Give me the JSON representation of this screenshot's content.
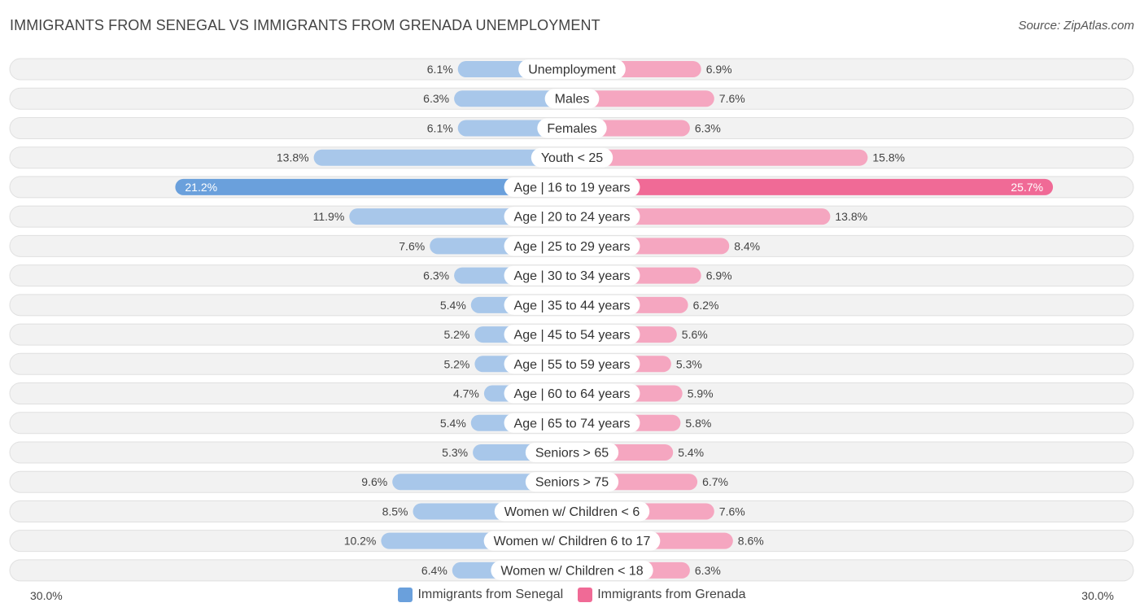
{
  "title": "IMMIGRANTS FROM SENEGAL VS IMMIGRANTS FROM GRENADA UNEMPLOYMENT",
  "source": "Source: ZipAtlas.com",
  "axis": {
    "left_label": "30.0%",
    "right_label": "30.0%"
  },
  "legend": [
    {
      "label": "Immigrants from Senegal",
      "color": "#6aa0dc"
    },
    {
      "label": "Immigrants from Grenada",
      "color": "#f06a96"
    }
  ],
  "colors": {
    "left_bar": "#a8c7ea",
    "left_bar_highlight": "#6aa0dc",
    "right_bar": "#f5a6c0",
    "right_bar_highlight": "#f06a96",
    "row_bg": "#f2f2f2",
    "row_border": "#e0e0e0"
  },
  "chart_data": {
    "type": "bar",
    "orientation": "horizontal-diverging",
    "title": "IMMIGRANTS FROM SENEGAL VS IMMIGRANTS FROM GRENADA UNEMPLOYMENT",
    "xlim": [
      0,
      30
    ],
    "categories": [
      "Unemployment",
      "Males",
      "Females",
      "Youth < 25",
      "Age | 16 to 19 years",
      "Age | 20 to 24 years",
      "Age | 25 to 29 years",
      "Age | 30 to 34 years",
      "Age | 35 to 44 years",
      "Age | 45 to 54 years",
      "Age | 55 to 59 years",
      "Age | 60 to 64 years",
      "Age | 65 to 74 years",
      "Seniors > 65",
      "Seniors > 75",
      "Women w/ Children < 6",
      "Women w/ Children 6 to 17",
      "Women w/ Children < 18"
    ],
    "series": [
      {
        "name": "Immigrants from Senegal",
        "values": [
          6.1,
          6.3,
          6.1,
          13.8,
          21.2,
          11.9,
          7.6,
          6.3,
          5.4,
          5.2,
          5.2,
          4.7,
          5.4,
          5.3,
          9.6,
          8.5,
          10.2,
          6.4
        ],
        "labels": [
          "6.1%",
          "6.3%",
          "6.1%",
          "13.8%",
          "21.2%",
          "11.9%",
          "7.6%",
          "6.3%",
          "5.4%",
          "5.2%",
          "5.2%",
          "4.7%",
          "5.4%",
          "5.3%",
          "9.6%",
          "8.5%",
          "10.2%",
          "6.4%"
        ]
      },
      {
        "name": "Immigrants from Grenada",
        "values": [
          6.9,
          7.6,
          6.3,
          15.8,
          25.7,
          13.8,
          8.4,
          6.9,
          6.2,
          5.6,
          5.3,
          5.9,
          5.8,
          5.4,
          6.7,
          7.6,
          8.6,
          6.3
        ],
        "labels": [
          "6.9%",
          "7.6%",
          "6.3%",
          "15.8%",
          "25.7%",
          "13.8%",
          "8.4%",
          "6.9%",
          "6.2%",
          "5.6%",
          "5.3%",
          "5.9%",
          "5.8%",
          "5.4%",
          "6.7%",
          "7.6%",
          "8.6%",
          "6.3%"
        ]
      }
    ],
    "highlight_index": 4,
    "legend_position": "bottom-center"
  }
}
